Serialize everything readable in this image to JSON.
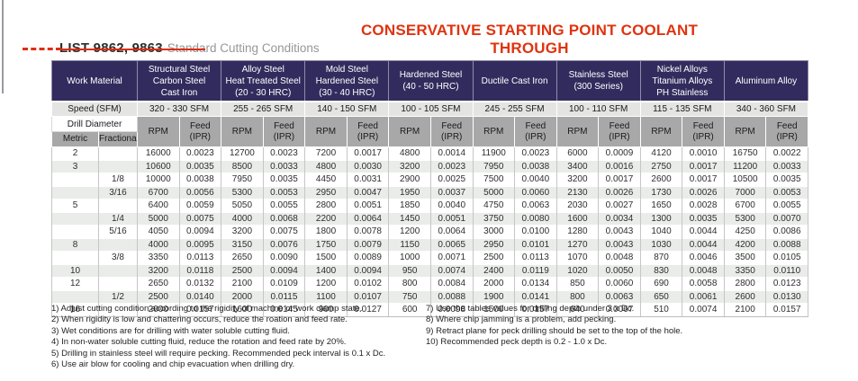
{
  "page": {
    "title_annotation": "CONSERVATIVE STARTING POINT COOLANT THROUGH",
    "list_label": "LIST 9862, 9863",
    "subtitle": "Standard Cutting Conditions"
  },
  "colors": {
    "accent_red": "#e0330f",
    "header_navy": "#322c5e",
    "subheader_gray": "#a8a8a8",
    "speed_row_gray": "#e4e4e2",
    "alt_row_green": "#e9ece9"
  },
  "table": {
    "labels": {
      "work_material": "Work Material",
      "speed": "Speed (SFM)",
      "drill_diameter": "Drill Diameter",
      "metric": "Metric",
      "fractional": "Fractional",
      "rpm": "RPM",
      "feed_line1": "Feed",
      "feed_line2": "(IPR)"
    },
    "materials": [
      {
        "name_lines": [
          "Structural Steel",
          "Carbon Steel",
          "Cast Iron"
        ],
        "speed": "320 - 330 SFM"
      },
      {
        "name_lines": [
          "Alloy Steel",
          "Heat Treated Steel",
          "(20 - 30 HRC)"
        ],
        "speed": "255 - 265 SFM"
      },
      {
        "name_lines": [
          "Mold Steel",
          "Hardened Steel",
          "(30 - 40 HRC)"
        ],
        "speed": "140 - 150 SFM"
      },
      {
        "name_lines": [
          "Hardened Steel",
          "(40 - 50 HRC)"
        ],
        "speed": "100 - 105 SFM"
      },
      {
        "name_lines": [
          "Ductile Cast Iron"
        ],
        "speed": "245 - 255 SFM"
      },
      {
        "name_lines": [
          "Stainless Steel",
          "(300 Series)"
        ],
        "speed": "100 - 110 SFM"
      },
      {
        "name_lines": [
          "Nickel Alloys",
          "Titanium Alloys",
          "PH Stainless"
        ],
        "speed": "115 - 135 SFM"
      },
      {
        "name_lines": [
          "Aluminum Alloy"
        ],
        "speed": "340 - 360 SFM"
      }
    ],
    "rows": [
      {
        "metric": "2",
        "fractional": "",
        "cells": [
          "16000",
          "0.0023",
          "12700",
          "0.0023",
          "7200",
          "0.0017",
          "4800",
          "0.0014",
          "11900",
          "0.0023",
          "6000",
          "0.0009",
          "4120",
          "0.0010",
          "16750",
          "0.0022"
        ]
      },
      {
        "metric": "3",
        "fractional": "",
        "cells": [
          "10600",
          "0.0035",
          "8500",
          "0.0033",
          "4800",
          "0.0030",
          "3200",
          "0.0023",
          "7950",
          "0.0038",
          "3400",
          "0.0016",
          "2750",
          "0.0017",
          "11200",
          "0.0033"
        ]
      },
      {
        "metric": "",
        "fractional": "1/8",
        "cells": [
          "10000",
          "0.0038",
          "7950",
          "0.0035",
          "4450",
          "0.0031",
          "2900",
          "0.0025",
          "7500",
          "0.0040",
          "3200",
          "0.0017",
          "2600",
          "0.0017",
          "10500",
          "0.0035"
        ]
      },
      {
        "metric": "",
        "fractional": "3/16",
        "cells": [
          "6700",
          "0.0056",
          "5300",
          "0.0053",
          "2950",
          "0.0047",
          "1950",
          "0.0037",
          "5000",
          "0.0060",
          "2130",
          "0.0026",
          "1730",
          "0.0026",
          "7000",
          "0.0053"
        ]
      },
      {
        "metric": "5",
        "fractional": "",
        "cells": [
          "6400",
          "0.0059",
          "5050",
          "0.0055",
          "2800",
          "0.0051",
          "1850",
          "0.0040",
          "4750",
          "0.0063",
          "2030",
          "0.0027",
          "1650",
          "0.0028",
          "6700",
          "0.0055"
        ]
      },
      {
        "metric": "",
        "fractional": "1/4",
        "cells": [
          "5000",
          "0.0075",
          "4000",
          "0.0068",
          "2200",
          "0.0064",
          "1450",
          "0.0051",
          "3750",
          "0.0080",
          "1600",
          "0.0034",
          "1300",
          "0.0035",
          "5300",
          "0.0070"
        ]
      },
      {
        "metric": "",
        "fractional": "5/16",
        "cells": [
          "4050",
          "0.0094",
          "3200",
          "0.0075",
          "1800",
          "0.0078",
          "1200",
          "0.0064",
          "3000",
          "0.0100",
          "1280",
          "0.0043",
          "1040",
          "0.0044",
          "4250",
          "0.0086"
        ]
      },
      {
        "metric": "8",
        "fractional": "",
        "cells": [
          "4000",
          "0.0095",
          "3150",
          "0.0076",
          "1750",
          "0.0079",
          "1150",
          "0.0065",
          "2950",
          "0.0101",
          "1270",
          "0.0043",
          "1030",
          "0.0044",
          "4200",
          "0.0088"
        ]
      },
      {
        "metric": "",
        "fractional": "3/8",
        "cells": [
          "3350",
          "0.0113",
          "2650",
          "0.0090",
          "1500",
          "0.0089",
          "1000",
          "0.0071",
          "2500",
          "0.0113",
          "1070",
          "0.0048",
          "870",
          "0.0046",
          "3500",
          "0.0105"
        ]
      },
      {
        "metric": "10",
        "fractional": "",
        "cells": [
          "3200",
          "0.0118",
          "2500",
          "0.0094",
          "1400",
          "0.0094",
          "950",
          "0.0074",
          "2400",
          "0.0119",
          "1020",
          "0.0050",
          "830",
          "0.0048",
          "3350",
          "0.0110"
        ]
      },
      {
        "metric": "12",
        "fractional": "",
        "cells": [
          "2650",
          "0.0132",
          "2100",
          "0.0109",
          "1200",
          "0.0102",
          "800",
          "0.0084",
          "2000",
          "0.0134",
          "850",
          "0.0060",
          "690",
          "0.0058",
          "2800",
          "0.0123"
        ]
      },
      {
        "metric": "",
        "fractional": "1/2",
        "cells": [
          "2500",
          "0.0140",
          "2000",
          "0.0115",
          "1100",
          "0.0107",
          "750",
          "0.0088",
          "1900",
          "0.0141",
          "800",
          "0.0063",
          "650",
          "0.0061",
          "2600",
          "0.0130"
        ]
      },
      {
        "metric": "16",
        "fractional": "",
        "cells": [
          "2000",
          "0.0157",
          "1600",
          "0.0145",
          "900",
          "0.0127",
          "600",
          "0.0098",
          "1500",
          "0.0157",
          "640",
          "0.0067",
          "510",
          "0.0074",
          "2100",
          "0.0157"
        ]
      }
    ]
  },
  "footnotes": {
    "left": [
      "1) Adjust cutting condition according to the rigidity of machine or work clamp state.",
      "2) When rigidity is low and chattering occurs, reduce the roation and feed rate.",
      "3) Wet conditions are for drilling with water soluble cutting fluid.",
      "4) In non-water soluble cutting fluid, reduce the rotation and feed rate by 20%.",
      "5) Drilling in stainless steel will require pecking. Recommended peck interval is 0.1 x Dc.",
      "6) Use air blow for cooling and chip evacuation when drilling dry."
    ],
    "right": [
      "7) Use the tables values for drilling depth under 3 x Dc.",
      "8) Where chip jamming is a problem, add pecking.",
      "9) Retract plane for peck drilling should be set to the top of the hole.",
      "10) Recommended peck depth is 0.2 - 1.0 x Dc."
    ]
  }
}
